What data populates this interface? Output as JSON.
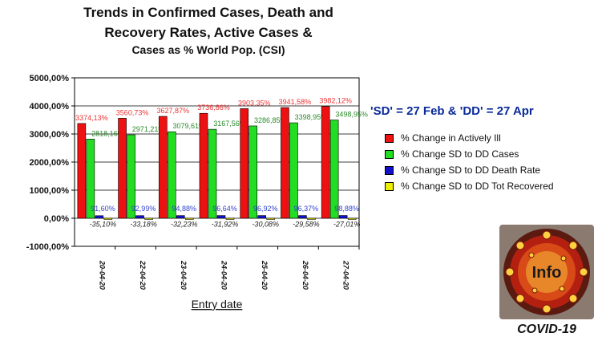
{
  "title_lines": [
    "Trends in Confirmed Cases, Death and",
    "Recovery Rates, Active Cases &",
    "Cases as % World Pop. (CSI)"
  ],
  "note": "'SD' = 27 Feb & 'DD' = 27 Apr",
  "logo": {
    "text": "Info",
    "caption": "COVID-19"
  },
  "colors": {
    "red": "#ee1111",
    "green": "#22dd22",
    "blue": "#1111cc",
    "yellow": "#eeee00"
  },
  "chart_data": {
    "type": "bar",
    "xlabel": "Entry date",
    "ylabel": "",
    "ylim": [
      -1000,
      5000
    ],
    "yticks": [
      -1000,
      0,
      1000,
      2000,
      3000,
      4000,
      5000
    ],
    "ytick_labels": [
      "-1000,00%",
      "0,00%",
      "1000,00%",
      "2000,00%",
      "3000,00%",
      "4000,00%",
      "5000,00%"
    ],
    "grid": true,
    "legend_position": "right",
    "categories": [
      "20-04-20",
      "22-04-20",
      "23-04-20",
      "24-04-20",
      "25-04-20",
      "26-04-20",
      "27-04-20"
    ],
    "series": [
      {
        "name": "% Change in Actively Ill",
        "color": "#ee1111",
        "label_color": "#ee3333",
        "values": [
          3374.13,
          3560.73,
          3627.87,
          3736.86,
          3903.35,
          3941.58,
          3982.12
        ],
        "labels": [
          "3374,13%",
          "3560,73%",
          "3627,87%",
          "3736,86%",
          "3903,35%",
          "3941,58%",
          "3982,12%"
        ]
      },
      {
        "name": "% Change SD to DD Cases",
        "color": "#22dd22",
        "label_color": "#2a8a2a",
        "values": [
          2818.16,
          2971.21,
          3079.61,
          3167.56,
          3286.85,
          3398.95,
          3498.95
        ],
        "labels": [
          "2818,16%",
          "2971,21%",
          "3079,61%",
          "3167,56%",
          "3286,85%",
          "3398,95%",
          "3498,95%"
        ]
      },
      {
        "name": "% Change SD to DD Death Rate",
        "color": "#1111cc",
        "label_color": "#3344cc",
        "values": [
          91.6,
          92.99,
          94.88,
          96.64,
          96.92,
          96.37,
          98.88
        ],
        "labels": [
          "91,60%",
          "92,99%",
          "94,88%",
          "96,64%",
          "96,92%",
          "96,37%",
          "98,88%"
        ]
      },
      {
        "name": "% Change SD to DD Tot Recovered",
        "color": "#eeee00",
        "label_color": "#222222",
        "values": [
          -35.1,
          -33.18,
          -32.23,
          -31.92,
          -30.08,
          -29.58,
          -27.01
        ],
        "labels": [
          "-35,10%",
          "-33,18%",
          "-32,23%",
          "-31,92%",
          "-30,08%",
          "-29,58%",
          "-27,01%"
        ]
      }
    ]
  }
}
